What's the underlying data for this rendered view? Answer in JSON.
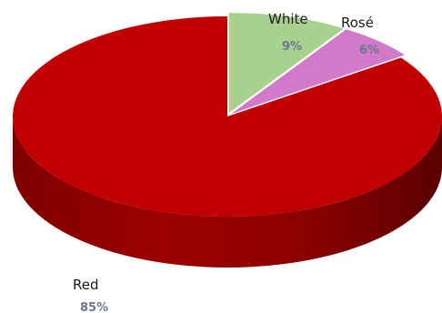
{
  "chart_data": {
    "type": "pie",
    "style": "3d-exploded",
    "categories": [
      "Red",
      "White",
      "Rosé"
    ],
    "values": [
      85,
      9,
      6
    ],
    "value_labels": [
      "85%",
      "9%",
      "6%"
    ],
    "colors": {
      "Red": "#c00000",
      "White": "#a9d18e",
      "Rosé": "#d279c9"
    },
    "legend": "none"
  }
}
